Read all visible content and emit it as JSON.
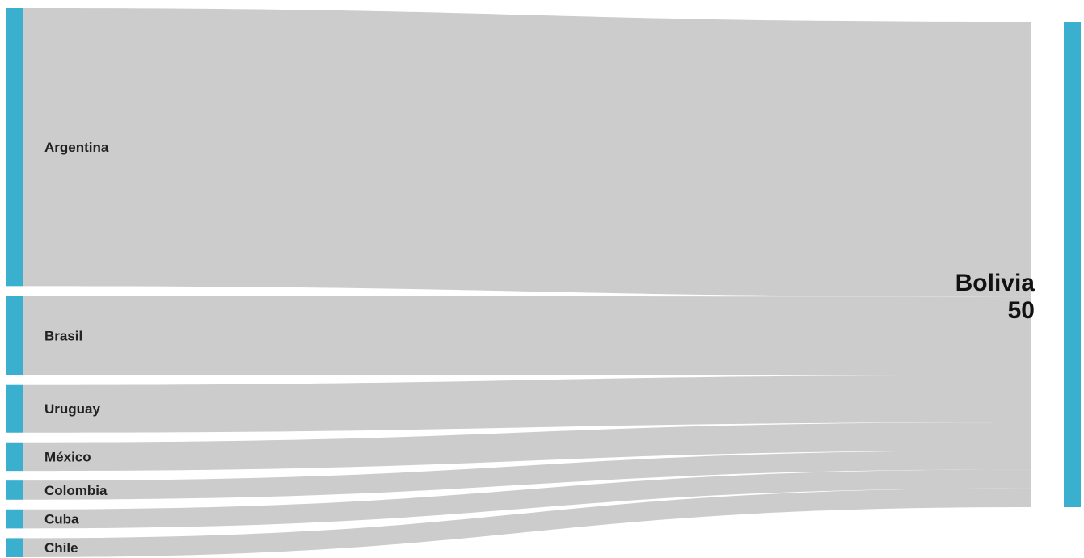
{
  "chart_data": {
    "type": "sankey",
    "title": "",
    "target": {
      "name": "Bolivia",
      "value": "50"
    },
    "sources": [
      {
        "name": "Argentina",
        "value": 17.5
      },
      {
        "name": "Brasil",
        "value": 5
      },
      {
        "name": "Uruguay",
        "value": 3
      },
      {
        "name": "México",
        "value": 1.8
      },
      {
        "name": "Colombia",
        "value": 1.2
      },
      {
        "name": "Cuba",
        "value": 1.2
      },
      {
        "name": "Chile",
        "value": 1.2
      }
    ],
    "colors": {
      "node": "#3aafce",
      "link": "#cccccc"
    }
  }
}
